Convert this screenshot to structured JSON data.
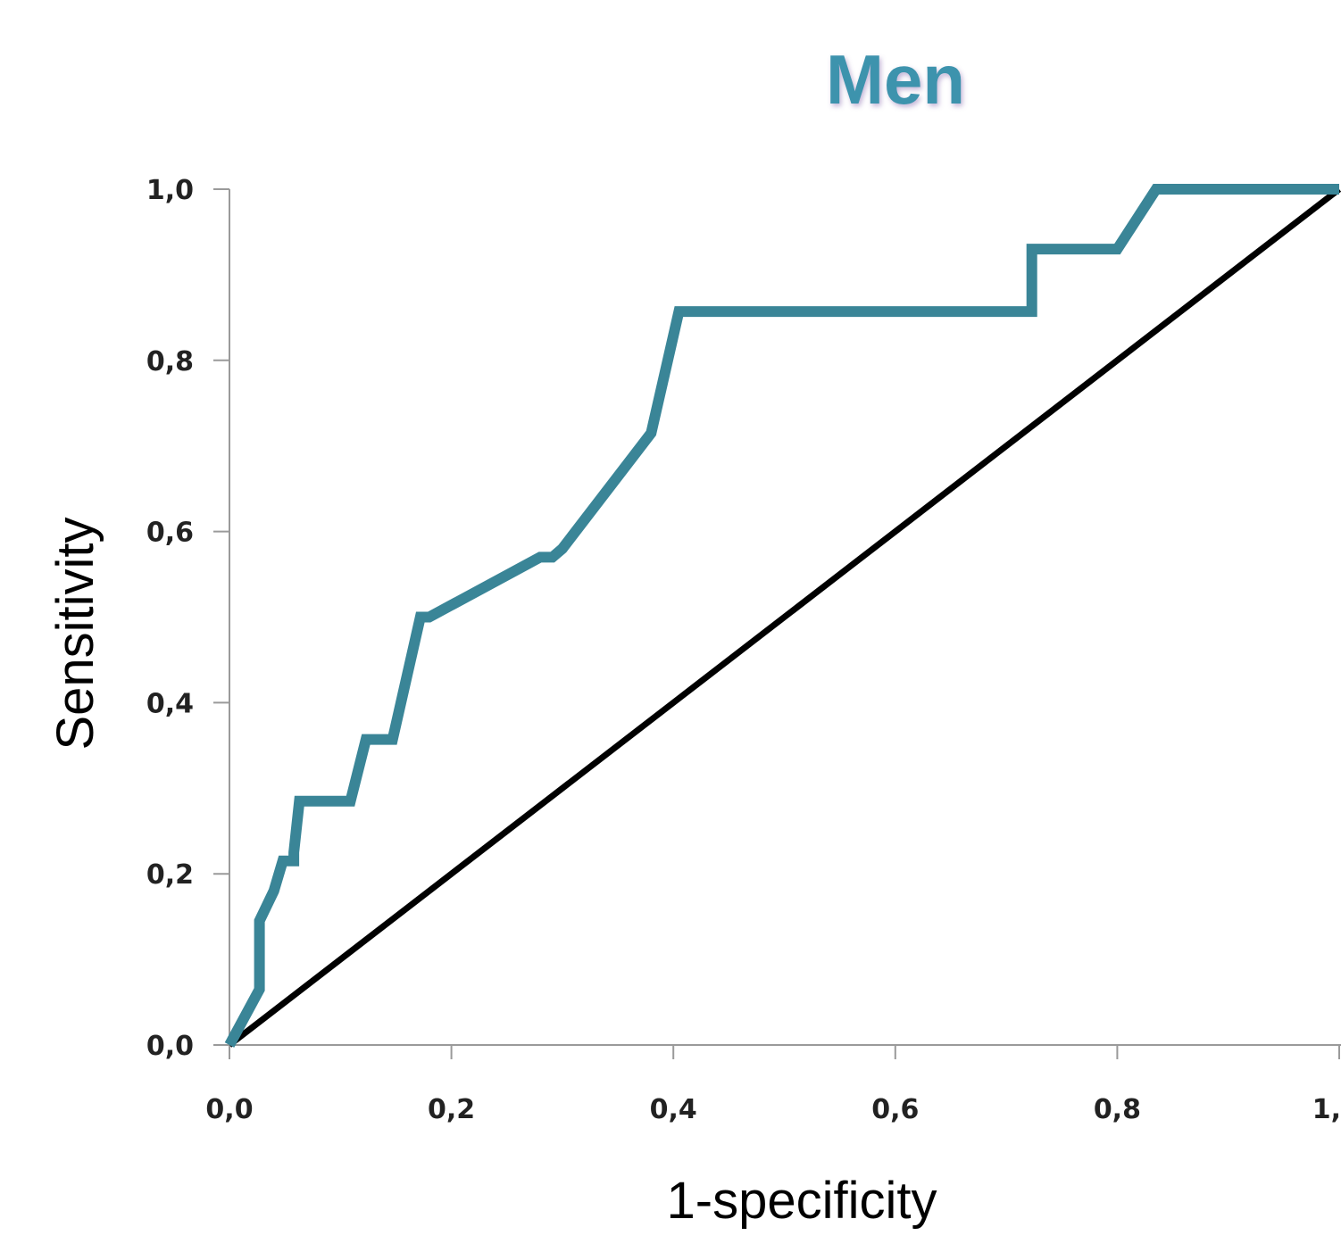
{
  "chart_data": {
    "type": "line",
    "title": "Men",
    "xlabel": "1-specificity",
    "ylabel": "Sensitivity",
    "xlim": [
      0,
      1
    ],
    "ylim": [
      0,
      1
    ],
    "x_ticks": [
      "0,0",
      "0,2",
      "0,4",
      "0,6",
      "0,8",
      "1,"
    ],
    "y_ticks": [
      "0,0",
      "0,2",
      "0,4",
      "0,6",
      "0,8",
      "1,0"
    ],
    "grid": false,
    "legend": "none",
    "colors": {
      "title": "#3c93ad",
      "roc_curve": "#3a8597",
      "reference_line": "#000000",
      "axis": "#9a9a9a"
    },
    "series": [
      {
        "x": [
          0.0,
          0.027,
          0.027,
          0.04,
          0.048,
          0.058,
          0.058,
          0.063,
          0.063,
          0.078,
          0.109,
          0.123,
          0.138,
          0.147,
          0.172,
          0.18,
          0.28,
          0.291,
          0.3,
          0.38,
          0.405,
          0.723,
          0.723,
          0.8,
          0.835,
          1.0
        ],
        "y": [
          0.0,
          0.065,
          0.145,
          0.18,
          0.215,
          0.215,
          0.225,
          0.285,
          0.285,
          0.285,
          0.285,
          0.357,
          0.357,
          0.357,
          0.5,
          0.5,
          0.57,
          0.57,
          0.58,
          0.715,
          0.857,
          0.857,
          0.93,
          0.93,
          1.0,
          1.0
        ]
      },
      {
        "x": [
          0.0,
          1.0
        ],
        "y": [
          0.0,
          1.0
        ]
      }
    ]
  }
}
